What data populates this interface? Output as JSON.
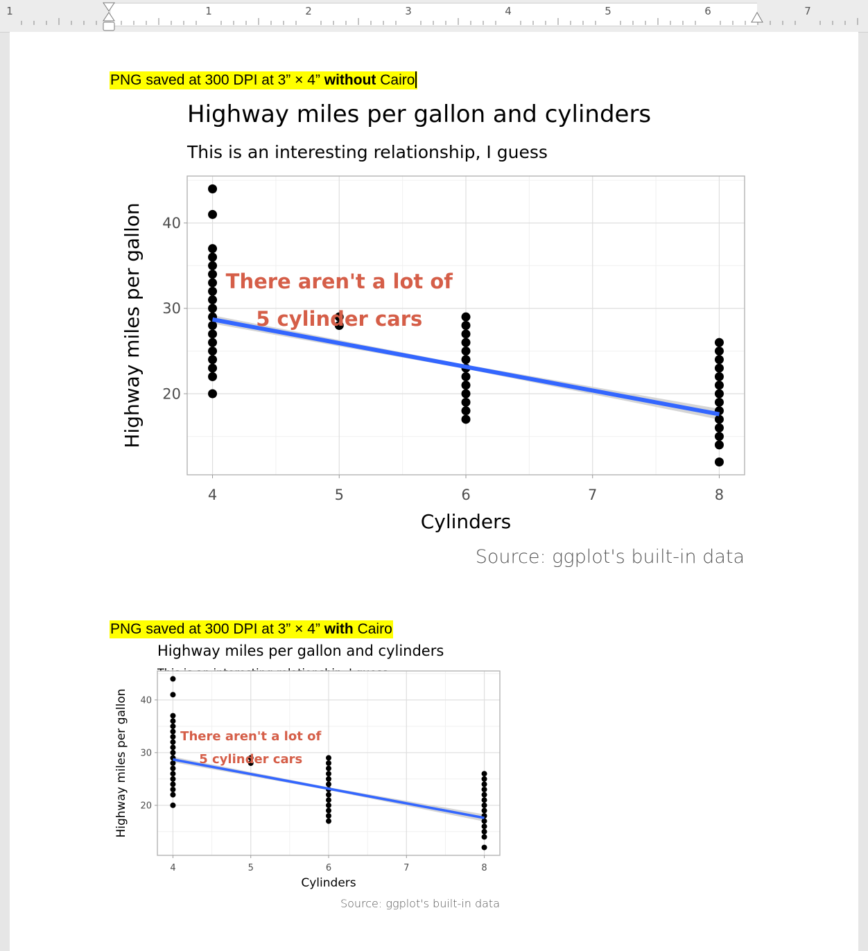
{
  "ruler": {
    "left_marker": "1",
    "numbers": [
      "1",
      "2",
      "3",
      "4",
      "5",
      "6",
      "7"
    ]
  },
  "captions": [
    {
      "prefix": "PNG saved at 300 DPI at 3” × 4” ",
      "emphasis": "without",
      "suffix": " Cairo",
      "highlight_color": "#ffff00"
    },
    {
      "prefix": "PNG saved at 300 DPI at 3” × 4” ",
      "emphasis": "with",
      "suffix": " Cairo",
      "highlight_color": "#ffff00"
    }
  ],
  "colors": {
    "annotation": "#d55e48",
    "trend_line": "#3366ff",
    "confidence_band": "#d0d0d0",
    "points": "#000000"
  },
  "chart_data": [
    {
      "type": "scatter",
      "title": "Highway miles per gallon and cylinders",
      "subtitle": "This is an interesting relationship, I guess",
      "xlabel": "Cylinders",
      "ylabel": "Highway miles per gallon",
      "caption": "Source: ggplot's built-in data",
      "annotation": [
        "There aren't a lot of",
        "5 cylinder cars"
      ],
      "xlim": [
        3.8,
        8.2
      ],
      "ylim": [
        10.5,
        45.5
      ],
      "x_ticks": [
        "4",
        "5",
        "6",
        "7",
        "8"
      ],
      "y_ticks": [
        "20",
        "30",
        "40"
      ],
      "grid": true,
      "points": {
        "4": [
          20,
          22,
          23,
          24,
          25,
          26,
          27,
          28,
          29,
          30,
          31,
          32,
          33,
          34,
          35,
          36,
          37,
          41,
          44
        ],
        "5": [
          28,
          29
        ],
        "6": [
          17,
          18,
          19,
          20,
          21,
          22,
          23,
          24,
          25,
          26,
          27,
          28,
          29
        ],
        "8": [
          12,
          14,
          15,
          16,
          17,
          18,
          19,
          20,
          21,
          22,
          23,
          24,
          25,
          26
        ]
      },
      "trend": {
        "x": [
          4,
          8
        ],
        "y": [
          28.7,
          17.6
        ]
      }
    },
    {
      "type": "scatter",
      "title": "Highway miles per gallon and cylinders",
      "subtitle": "This is an interesting relationship, I guess",
      "xlabel": "Cylinders",
      "ylabel": "Highway miles per gallon",
      "caption": "Source: ggplot's built-in data",
      "annotation": [
        "There aren't a lot of",
        "5 cylinder cars"
      ],
      "xlim": [
        3.8,
        8.2
      ],
      "ylim": [
        10.5,
        45.5
      ],
      "x_ticks": [
        "4",
        "5",
        "6",
        "7",
        "8"
      ],
      "y_ticks": [
        "20",
        "30",
        "40"
      ],
      "grid": true,
      "points": {
        "4": [
          20,
          22,
          23,
          24,
          25,
          26,
          27,
          28,
          29,
          30,
          31,
          32,
          33,
          34,
          35,
          36,
          37,
          41,
          44
        ],
        "5": [
          28,
          29
        ],
        "6": [
          17,
          18,
          19,
          20,
          21,
          22,
          23,
          24,
          25,
          26,
          27,
          28,
          29
        ],
        "8": [
          12,
          14,
          15,
          16,
          17,
          18,
          19,
          20,
          21,
          22,
          23,
          24,
          25,
          26
        ]
      },
      "trend": {
        "x": [
          4,
          8
        ],
        "y": [
          28.7,
          17.6
        ]
      }
    }
  ]
}
